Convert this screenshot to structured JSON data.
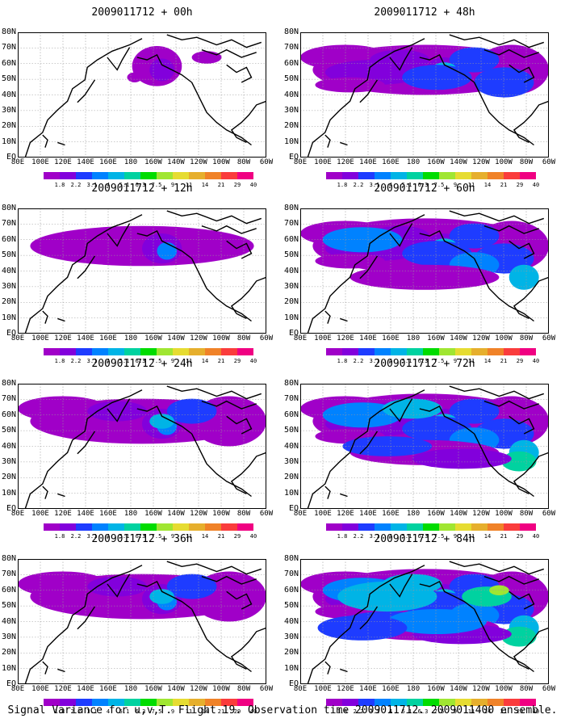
{
  "panels": [
    {
      "id": "p00",
      "title": "2009011712 + 00h",
      "col": 0,
      "row": 0,
      "level": 0
    },
    {
      "id": "p48",
      "title": "2009011712 + 48h",
      "col": 1,
      "row": 0,
      "level": 3
    },
    {
      "id": "p12",
      "title": "2009011712 + 12h",
      "col": 0,
      "row": 1,
      "level": 1
    },
    {
      "id": "p60",
      "title": "2009011712 + 60h",
      "col": 1,
      "row": 1,
      "level": 4
    },
    {
      "id": "p24",
      "title": "2009011712 + 24h",
      "col": 0,
      "row": 2,
      "level": 2
    },
    {
      "id": "p72",
      "title": "2009011712 + 72h",
      "col": 1,
      "row": 2,
      "level": 5
    },
    {
      "id": "p36",
      "title": "2009011712 + 36h",
      "col": 0,
      "row": 3,
      "level": 2
    },
    {
      "id": "p84",
      "title": "2009011712 + 84h",
      "col": 1,
      "row": 3,
      "level": 6
    }
  ],
  "axes": {
    "x_ticks": [
      "80E",
      "100E",
      "120E",
      "140E",
      "160E",
      "180",
      "160W",
      "140W",
      "120W",
      "100W",
      "80W",
      "60W"
    ],
    "y_ticks": [
      "80N",
      "70N",
      "60N",
      "50N",
      "40N",
      "30N",
      "20N",
      "10N",
      "EQ"
    ]
  },
  "legend": {
    "labels": [
      "1.8",
      "2.2",
      "3.1",
      "4",
      "5.1",
      "6.3",
      "7.5",
      "9",
      "11",
      "14",
      "21",
      "29",
      "40"
    ],
    "colors": [
      "#a000c8",
      "#8200dc",
      "#1e3cff",
      "#0082ff",
      "#00b4e6",
      "#00d2a0",
      "#00dc00",
      "#a0e632",
      "#e6dc32",
      "#e6af2d",
      "#f08228",
      "#fa3c3c",
      "#f00082"
    ]
  },
  "caption": "Signal Variance for u,v,T. Flight 19. Observation time 2009011712. 2009011400 ensemble."
}
